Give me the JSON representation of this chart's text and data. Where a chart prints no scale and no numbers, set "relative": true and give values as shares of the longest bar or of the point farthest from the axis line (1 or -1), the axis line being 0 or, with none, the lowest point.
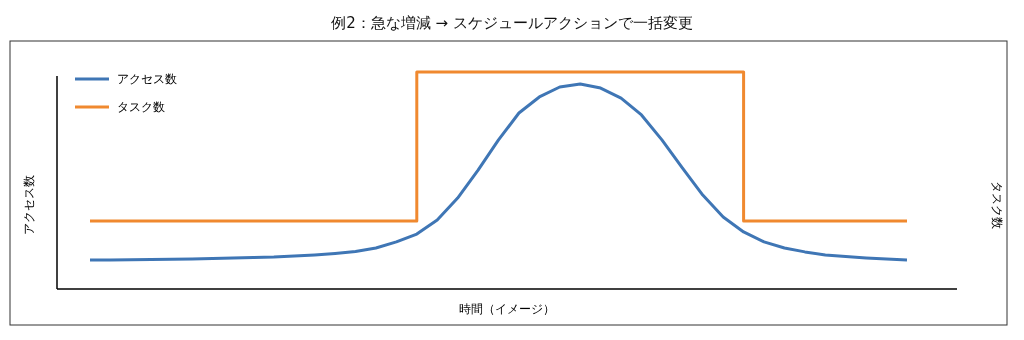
{
  "chart_data": {
    "type": "line",
    "title": "例2：急な増減 → スケジュールアクションで一括変更",
    "xlabel": "時間（イメージ）",
    "ylabel": "アクセス数",
    "annotations": [
      "タスク数"
    ],
    "relative": true,
    "legend": "top left",
    "categories": [
      null,
      null,
      null,
      null,
      null,
      null,
      null,
      null,
      null,
      null,
      null,
      null,
      null,
      null,
      null,
      null,
      null,
      null,
      null,
      null,
      null,
      null,
      null,
      null,
      null,
      null,
      null,
      null,
      null,
      null,
      null,
      null,
      null,
      null,
      null,
      null,
      null,
      null,
      null,
      null,
      null
    ],
    "series": [
      {
        "name": "アクセス数",
        "color": "#3f76b5",
        "values": [
          0.134,
          0.134,
          0.135,
          0.136,
          0.137,
          0.138,
          0.14,
          0.143,
          0.145,
          0.147,
          0.152,
          0.157,
          0.164,
          0.173,
          0.189,
          0.217,
          0.253,
          0.318,
          0.419,
          0.548,
          0.687,
          0.811,
          0.885,
          0.931,
          0.945,
          0.926,
          0.88,
          0.802,
          0.687,
          0.558,
          0.433,
          0.332,
          0.263,
          0.217,
          0.189,
          0.171,
          0.157,
          0.15,
          0.143,
          0.138,
          0.134
        ]
      },
      {
        "name": "タスク数",
        "type": "step",
        "color": "#f0892f",
        "values": [
          0.313,
          0.313,
          0.313,
          0.313,
          0.313,
          0.313,
          0.313,
          0.313,
          0.313,
          0.313,
          0.313,
          0.313,
          0.313,
          0.313,
          0.313,
          0.313,
          1,
          1,
          1,
          1,
          1,
          1,
          1,
          1,
          1,
          1,
          1,
          1,
          1,
          1,
          1,
          1,
          0.313,
          0.313,
          0.313,
          0.313,
          0.313,
          0.313,
          0.313,
          0.313,
          0.313
        ]
      }
    ]
  }
}
